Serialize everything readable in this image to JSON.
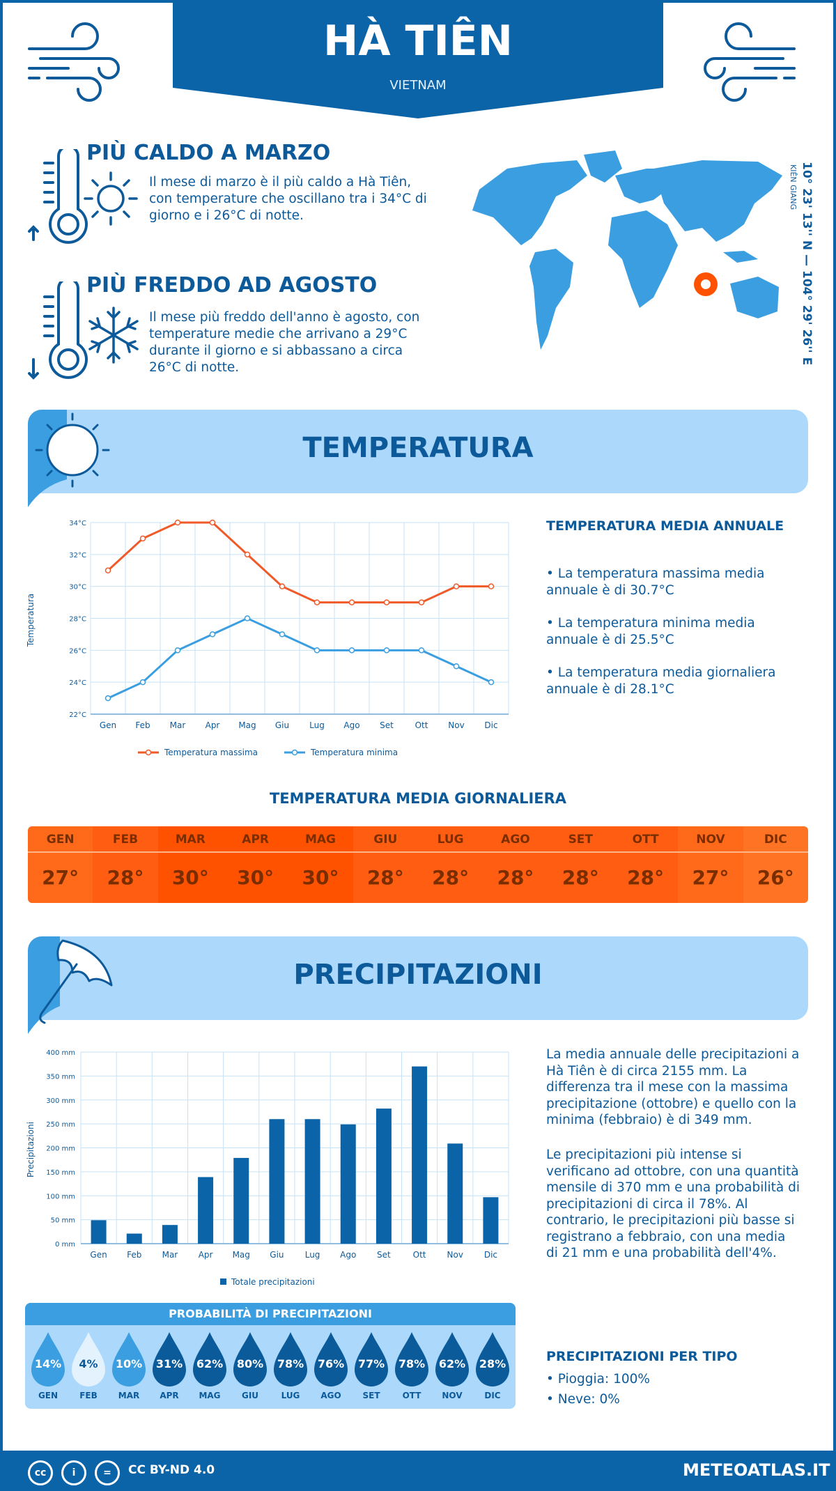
{
  "header": {
    "title": "HÀ TIÊN",
    "country": "VIETNAM"
  },
  "hottest": {
    "title": "PIÙ CALDO A MARZO",
    "text": "Il mese di marzo è il più caldo a Hà Tiên, con temperature che oscillano tra i 34°C di giorno e i 26°C di notte."
  },
  "coldest": {
    "title": "PIÙ FREDDO AD AGOSTO",
    "text": "Il mese più freddo dell'anno è agosto, con temperature medie che arrivano a 29°C durante il giorno e si abbassano a circa 26°C di notte."
  },
  "location": {
    "coords": "10° 23' 13'' N — 104° 29' 26'' E",
    "region": "KIÊN GIANG"
  },
  "temperature": {
    "section_title": "TEMPERATURA",
    "annual_title": "TEMPERATURA MEDIA ANNUALE",
    "annual_max": "• La temperatura massima media annuale è di 30.7°C",
    "annual_min": "• La temperatura minima media annuale è di 25.5°C",
    "annual_avg": "• La temperatura media giornaliera annuale è di 28.1°C",
    "daily_title": "TEMPERATURA MEDIA GIORNALIERA",
    "daily": [
      {
        "month": "GEN",
        "value": "27°",
        "color": "#ff6a1a"
      },
      {
        "month": "FEB",
        "value": "28°",
        "color": "#ff5e12"
      },
      {
        "month": "MAR",
        "value": "30°",
        "color": "#ff5200"
      },
      {
        "month": "APR",
        "value": "30°",
        "color": "#ff5200"
      },
      {
        "month": "MAG",
        "value": "30°",
        "color": "#ff5200"
      },
      {
        "month": "GIU",
        "value": "28°",
        "color": "#ff5e12"
      },
      {
        "month": "LUG",
        "value": "28°",
        "color": "#ff5e12"
      },
      {
        "month": "AGO",
        "value": "28°",
        "color": "#ff5e12"
      },
      {
        "month": "SET",
        "value": "28°",
        "color": "#ff5e12"
      },
      {
        "month": "OTT",
        "value": "28°",
        "color": "#ff5e12"
      },
      {
        "month": "NOV",
        "value": "27°",
        "color": "#ff6a1a"
      },
      {
        "month": "DIC",
        "value": "26°",
        "color": "#ff7424"
      }
    ]
  },
  "precipitation": {
    "section_title": "PRECIPITAZIONI",
    "text1": "La media annuale delle precipitazioni a Hà Tiên è di circa 2155 mm. La differenza tra il mese con la massima precipitazione (ottobre) e quello con la minima (febbraio) è di 349 mm.",
    "text2": "Le precipitazioni più intense si verificano ad ottobre, con una quantità mensile di 370 mm e una probabilità di precipitazioni di circa il 78%. Al contrario, le precipitazioni più basse si registrano a febbraio, con una media di 21 mm e una probabilità dell'4%.",
    "prob_title": "PROBABILITÀ DI PRECIPITAZIONI",
    "probabilities": [
      {
        "month": "GEN",
        "pct": "14%",
        "color": "#3a9ee0"
      },
      {
        "month": "FEB",
        "pct": "4%",
        "color": "#e3f2fd"
      },
      {
        "month": "MAR",
        "pct": "10%",
        "color": "#3a9ee0"
      },
      {
        "month": "APR",
        "pct": "31%",
        "color": "#0b5a9a"
      },
      {
        "month": "MAG",
        "pct": "62%",
        "color": "#0b5a9a"
      },
      {
        "month": "GIU",
        "pct": "80%",
        "color": "#0b5a9a"
      },
      {
        "month": "LUG",
        "pct": "78%",
        "color": "#0b5a9a"
      },
      {
        "month": "AGO",
        "pct": "76%",
        "color": "#0b5a9a"
      },
      {
        "month": "SET",
        "pct": "77%",
        "color": "#0b5a9a"
      },
      {
        "month": "OTT",
        "pct": "78%",
        "color": "#0b5a9a"
      },
      {
        "month": "NOV",
        "pct": "62%",
        "color": "#0b5a9a"
      },
      {
        "month": "DIC",
        "pct": "28%",
        "color": "#0b5a9a"
      }
    ],
    "type_title": "PRECIPITAZIONI PER TIPO",
    "rain": "• Pioggia: 100%",
    "snow": "• Neve: 0%"
  },
  "footer": {
    "license": "CC BY-ND 4.0",
    "site": "METEOATLAS.IT"
  },
  "colors": {
    "primary": "#0b63a8",
    "light": "#acd9fb",
    "max_line": "#f05a28",
    "min_line": "#3a9ee0"
  },
  "chart_data": [
    {
      "type": "line",
      "x": [
        "Gen",
        "Feb",
        "Mar",
        "Apr",
        "Mag",
        "Giu",
        "Lug",
        "Ago",
        "Set",
        "Ott",
        "Nov",
        "Dic"
      ],
      "series": [
        {
          "name": "Temperatura massima",
          "values": [
            31,
            33,
            34,
            34,
            32,
            30,
            29,
            29,
            29,
            29,
            30,
            30
          ]
        },
        {
          "name": "Temperatura minima",
          "values": [
            23,
            24,
            26,
            27,
            28,
            27,
            26,
            26,
            26,
            26,
            25,
            24
          ]
        }
      ],
      "ylabel": "Temperatura",
      "ylim": [
        22,
        34
      ],
      "yticks": [
        "22°C",
        "24°C",
        "26°C",
        "28°C",
        "30°C",
        "32°C",
        "34°C"
      ],
      "grid": true,
      "legend": "bottom"
    },
    {
      "type": "bar",
      "categories": [
        "Gen",
        "Feb",
        "Mar",
        "Apr",
        "Mag",
        "Giu",
        "Lug",
        "Ago",
        "Set",
        "Ott",
        "Nov",
        "Dic"
      ],
      "series": [
        {
          "name": "Totale precipitazioni",
          "values": [
            49,
            21,
            39,
            139,
            179,
            260,
            260,
            249,
            282,
            370,
            209,
            97
          ]
        }
      ],
      "ylabel": "Precipitazioni",
      "ylim": [
        0,
        400
      ],
      "yticks": [
        "0 mm",
        "50 mm",
        "100 mm",
        "150 mm",
        "200 mm",
        "250 mm",
        "300 mm",
        "350 mm",
        "400 mm"
      ],
      "grid": true,
      "legend": "bottom"
    }
  ]
}
